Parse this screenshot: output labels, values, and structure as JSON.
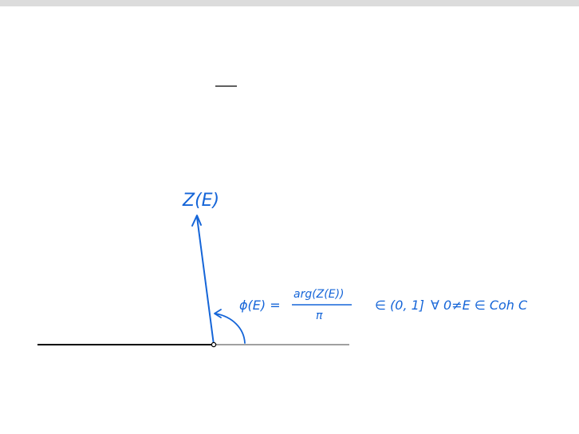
{
  "colors": {
    "ink_blue": "#1565d8",
    "axis_black": "#000000",
    "axis_grey": "#a0a0a0",
    "top_bar": "#dcdcdc"
  },
  "diagram": {
    "vector_label": "Z(E)",
    "phase_lhs": "ϕ(E) =",
    "phase_numerator": "arg(Z(E))",
    "phase_denominator": "π",
    "phase_range": "∈ (0, 1]",
    "quantifier": "∀ 0≠E ∈ Coh C"
  }
}
